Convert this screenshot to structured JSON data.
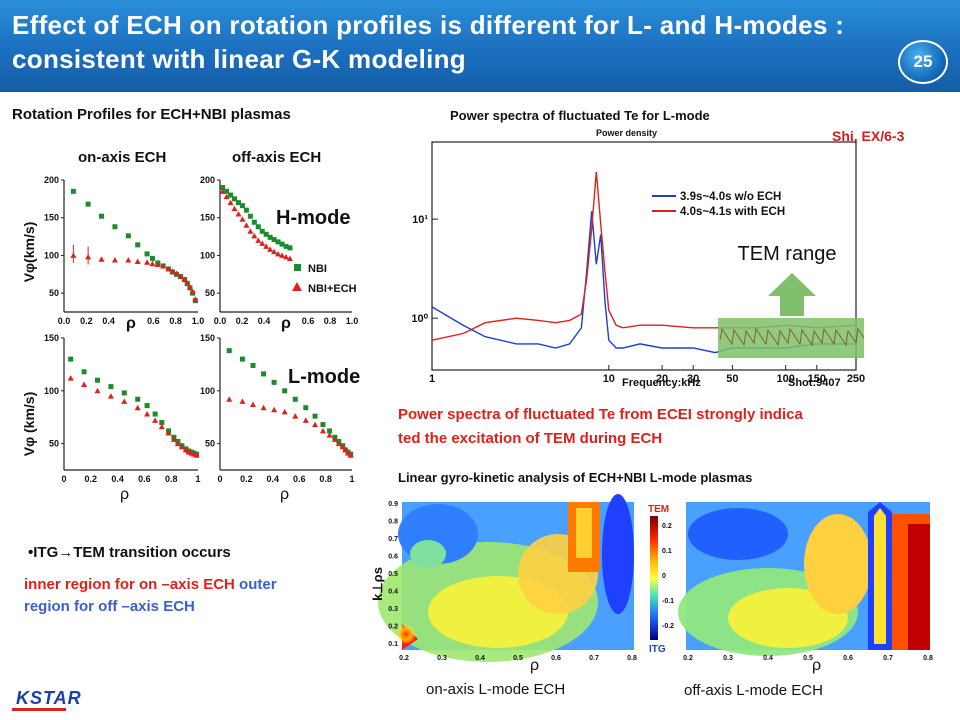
{
  "header": {
    "title": "Effect of ECH on rotation profiles is different for L- and H-modes : consistent with linear G-K modeling",
    "page_number": "25"
  },
  "left": {
    "section_title": "Rotation Profiles for ECH+NBI plasmas",
    "col_titles": [
      "on-axis ECH",
      "off-axis ECH"
    ],
    "ylabel_top": "Vφ(km/s)",
    "ylabel_bottom": "Vφ (km/s)",
    "xlabel": "ρ",
    "hmode_label": "H-mode",
    "lmode_label": "L-mode",
    "legend": [
      "NBI",
      "NBI+ECH"
    ],
    "x_ticks": [
      "0.0",
      "0.2",
      "0.4",
      "ρ",
      "0.6",
      "0.8",
      "1.0"
    ],
    "x_ticks_bottom": [
      "0",
      "0.2",
      "0.4",
      "0.6",
      "0.8",
      "1"
    ],
    "y_ticks_top": [
      "200",
      "150",
      "100",
      "50"
    ],
    "y_ticks_bottom": [
      "150",
      "100",
      "50"
    ],
    "bullet_title": "•ITG→TEM  transition occurs",
    "bullet_red": "inner region  for on –axis ECH",
    "bullet_blue_1": "outer",
    "bullet_blue_2": "region  for off –axis ECH"
  },
  "right": {
    "spectrum_title": "Power spectra of  fluctuated Te for L-mode",
    "citation": "Shi, EX/6-3",
    "power_density_label": "Power density",
    "x_axis_label": "Frequency:kHz",
    "shot_label": "Shot:9407",
    "tem_range": "TEM range",
    "y_ticks": [
      "10¹",
      "10⁰"
    ],
    "x_ticks": [
      "1",
      "10",
      "20",
      "30",
      "50",
      "100",
      "150",
      "250"
    ],
    "legend": [
      "3.9s~4.0s w/o ECH",
      "4.0s~4.1s with ECH"
    ],
    "spectrum_caption_1": "Power spectra of fluctuated Te from ECEI strongly indica",
    "spectrum_caption_2": "ted the excitation  of TEM during ECH",
    "gk_title": "Linear gyro-kinetic analysis of ECH+NBI L-mode plasmas",
    "gk_ylabel": "k⊥ρs",
    "gk_xlabel": "ρ",
    "colorbar_top": "TEM",
    "colorbar_bottom": "ITG",
    "colorbar_ticks": [
      "0.2",
      "0.1",
      "0",
      "-0.1",
      "-0.2"
    ],
    "gk_y_ticks": [
      "0.9",
      "0.8",
      "0.7",
      "0.6",
      "0.5",
      "0.4",
      "0.3",
      "0.2",
      "0.1"
    ],
    "gk_x_ticks": [
      "0.2",
      "0.3",
      "0.4",
      "0.5",
      "0.6",
      "0.7",
      "0.8"
    ],
    "gk_caption_left": "on-axis L-mode ECH",
    "gk_caption_right": "off-axis L-mode ECH"
  },
  "footer": {
    "logo_text": "KSTAR"
  },
  "colors": {
    "nbi": "#1a8c2a",
    "nbi_ech": "#e0201b",
    "header_blue": "#1b6fbf",
    "tem_green": "#7fbf6a"
  },
  "chart_data": [
    {
      "type": "scatter",
      "title": "on-axis ECH",
      "panel": "H-mode",
      "xlabel": "ρ",
      "ylabel": "Vφ(km/s)",
      "xlim": [
        0,
        1
      ],
      "ylim": [
        25,
        200
      ],
      "series": [
        {
          "name": "NBI",
          "x": [
            0.07,
            0.18,
            0.28,
            0.38,
            0.48,
            0.55,
            0.62,
            0.66,
            0.7,
            0.74,
            0.78,
            0.81,
            0.84,
            0.87,
            0.9,
            0.92,
            0.94,
            0.96,
            0.98
          ],
          "values": [
            185,
            168,
            152,
            138,
            126,
            114,
            102,
            96,
            90,
            86,
            82,
            78,
            75,
            72,
            68,
            63,
            57,
            50,
            40
          ]
        },
        {
          "name": "NBI+ECH",
          "x": [
            0.07,
            0.18,
            0.28,
            0.38,
            0.48,
            0.55,
            0.62,
            0.66,
            0.7,
            0.74,
            0.78,
            0.81,
            0.84,
            0.87,
            0.9,
            0.92,
            0.94,
            0.96,
            0.98
          ],
          "values": [
            100,
            98,
            95,
            94,
            94,
            92,
            91,
            89,
            88,
            86,
            82,
            79,
            76,
            72,
            68,
            63,
            58,
            52,
            42
          ]
        }
      ]
    },
    {
      "type": "scatter",
      "title": "off-axis ECH",
      "panel": "H-mode",
      "xlabel": "ρ",
      "ylabel": "",
      "xlim": [
        0,
        1
      ],
      "ylim": [
        25,
        200
      ],
      "series": [
        {
          "name": "NBI",
          "x": [
            0.02,
            0.05,
            0.08,
            0.11,
            0.14,
            0.17,
            0.2,
            0.23,
            0.26,
            0.29,
            0.32,
            0.35,
            0.38,
            0.41,
            0.44,
            0.47,
            0.5,
            0.53
          ],
          "values": [
            190,
            185,
            180,
            175,
            170,
            166,
            160,
            152,
            144,
            138,
            132,
            128,
            124,
            121,
            118,
            115,
            112,
            110
          ]
        },
        {
          "name": "NBI+ECH",
          "x": [
            0.02,
            0.05,
            0.08,
            0.11,
            0.14,
            0.17,
            0.2,
            0.23,
            0.26,
            0.29,
            0.32,
            0.35,
            0.38,
            0.41,
            0.44,
            0.47,
            0.5,
            0.53
          ],
          "values": [
            185,
            178,
            170,
            162,
            155,
            148,
            140,
            132,
            126,
            120,
            116,
            112,
            108,
            105,
            102,
            100,
            98,
            96
          ]
        }
      ]
    },
    {
      "type": "scatter",
      "title": "",
      "panel": "L-mode",
      "xlabel": "ρ",
      "ylabel": "Vφ (km/s)",
      "xlim": [
        0,
        1
      ],
      "ylim": [
        25,
        150
      ],
      "series": [
        {
          "name": "NBI",
          "x": [
            0.05,
            0.15,
            0.25,
            0.35,
            0.45,
            0.55,
            0.62,
            0.68,
            0.73,
            0.78,
            0.82,
            0.85,
            0.88,
            0.91,
            0.93,
            0.95,
            0.97,
            0.99
          ],
          "values": [
            130,
            118,
            110,
            104,
            98,
            92,
            86,
            78,
            70,
            62,
            56,
            52,
            48,
            45,
            43,
            42,
            41,
            40
          ]
        },
        {
          "name": "NBI+ECH",
          "x": [
            0.05,
            0.15,
            0.25,
            0.35,
            0.45,
            0.55,
            0.62,
            0.68,
            0.73,
            0.78,
            0.82,
            0.85,
            0.88,
            0.91,
            0.93,
            0.95,
            0.97,
            0.99
          ],
          "values": [
            112,
            106,
            100,
            95,
            90,
            84,
            78,
            72,
            66,
            60,
            54,
            50,
            47,
            44,
            42,
            41,
            40,
            39
          ]
        }
      ]
    },
    {
      "type": "scatter",
      "title": "",
      "panel": "L-mode",
      "xlabel": "ρ",
      "ylabel": "",
      "xlim": [
        0,
        1
      ],
      "ylim": [
        25,
        150
      ],
      "series": [
        {
          "name": "NBI",
          "x": [
            0.07,
            0.17,
            0.25,
            0.33,
            0.41,
            0.49,
            0.57,
            0.65,
            0.72,
            0.78,
            0.83,
            0.87,
            0.9,
            0.93,
            0.95,
            0.97,
            0.99
          ],
          "values": [
            138,
            130,
            124,
            116,
            108,
            100,
            92,
            84,
            76,
            68,
            62,
            56,
            52,
            48,
            44,
            42,
            40
          ]
        },
        {
          "name": "NBI+ECH",
          "x": [
            0.07,
            0.17,
            0.25,
            0.33,
            0.41,
            0.49,
            0.57,
            0.65,
            0.72,
            0.78,
            0.83,
            0.87,
            0.9,
            0.93,
            0.95,
            0.97,
            0.99
          ],
          "values": [
            92,
            90,
            87,
            84,
            82,
            80,
            76,
            72,
            68,
            62,
            58,
            54,
            50,
            47,
            44,
            41,
            39
          ]
        }
      ]
    },
    {
      "type": "line",
      "title": "Power spectra of  fluctuated Te for L-mode",
      "xlabel": "Frequency:kHz",
      "ylabel": "Power density",
      "xscale": "log",
      "yscale": "log",
      "xlim": [
        1,
        250
      ],
      "ylim": [
        0.3,
        60
      ],
      "series": [
        {
          "name": "3.9s~4.0s w/o ECH",
          "x": [
            1,
            1.5,
            2,
            3,
            4,
            5,
            6,
            7,
            7.5,
            8,
            8.5,
            9,
            9.5,
            10,
            11,
            12,
            15,
            20,
            30,
            40,
            50,
            70,
            100,
            150,
            250
          ],
          "values": [
            1.3,
            0.85,
            0.65,
            0.55,
            0.55,
            0.5,
            0.55,
            0.8,
            3.0,
            12.0,
            3.5,
            7.0,
            1.5,
            0.6,
            0.5,
            0.5,
            0.55,
            0.5,
            0.5,
            0.45,
            0.5,
            0.5,
            0.5,
            0.55,
            0.55
          ]
        },
        {
          "name": "4.0s~4.1s with ECH",
          "x": [
            1,
            1.5,
            2,
            3,
            4,
            5,
            6,
            7,
            7.5,
            8,
            8.5,
            9,
            9.5,
            10,
            11,
            12,
            15,
            20,
            30,
            40,
            50,
            70,
            100,
            150,
            250
          ],
          "values": [
            0.6,
            0.7,
            0.9,
            1.0,
            0.95,
            0.9,
            0.95,
            1.1,
            2.5,
            8.0,
            30.0,
            9.0,
            3.0,
            1.2,
            0.85,
            0.8,
            0.85,
            0.85,
            0.8,
            0.8,
            0.8,
            0.8,
            0.85,
            0.8,
            0.85
          ]
        }
      ]
    }
  ]
}
